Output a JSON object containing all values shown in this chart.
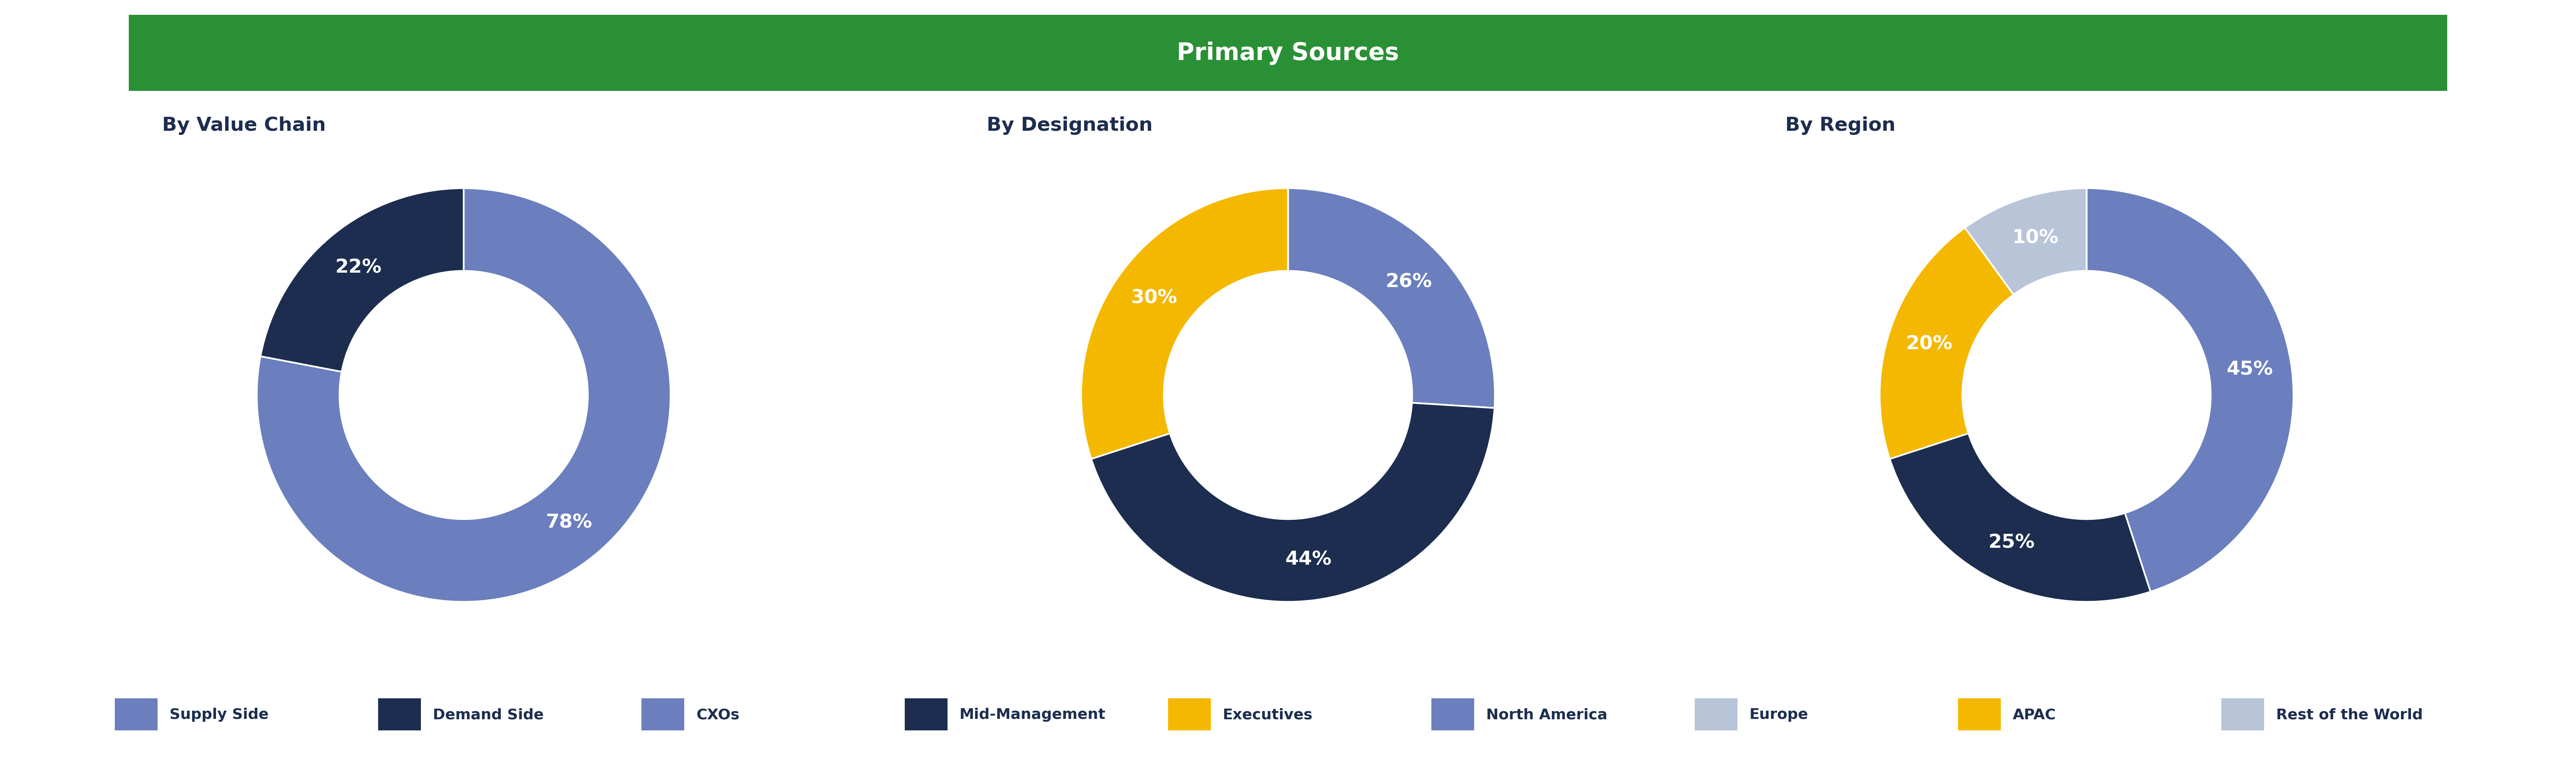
{
  "title": "Primary Sources",
  "title_bg_color": "#2a9035",
  "title_text_color": "#ffffff",
  "background_color": "#ffffff",
  "subtitle_color": "#1c2d4f",
  "chart_bg_color": "#ffffff",
  "chart1_title": "By Value Chain",
  "chart1_values": [
    78,
    22
  ],
  "chart1_labels": [
    "78%",
    "22%"
  ],
  "chart1_colors": [
    "#6b7fbe",
    "#1c2d4f"
  ],
  "chart2_title": "By Designation",
  "chart2_values": [
    26,
    44,
    30
  ],
  "chart2_labels": [
    "26%",
    "44%",
    "30%"
  ],
  "chart2_colors": [
    "#6b7fbe",
    "#1c2d4f",
    "#f5b800"
  ],
  "chart3_title": "By Region",
  "chart3_values": [
    45,
    25,
    20,
    10
  ],
  "chart3_labels": [
    "45%",
    "25%",
    "20%",
    "10%"
  ],
  "chart3_colors": [
    "#6b7fbe",
    "#1c2d4f",
    "#f5b800",
    "#b8c4d8"
  ],
  "legend_items": [
    {
      "label": "Supply Side",
      "color": "#6b7fbe"
    },
    {
      "label": "Demand Side",
      "color": "#1c2d4f"
    },
    {
      "label": "CXOs",
      "color": "#6b7fbe"
    },
    {
      "label": "Mid-Management",
      "color": "#1c2d4f"
    },
    {
      "label": "Executives",
      "color": "#f5b800"
    },
    {
      "label": "North America",
      "color": "#6b7fbe"
    },
    {
      "label": "Europe",
      "color": "#b8c4d8"
    },
    {
      "label": "APAC",
      "color": "#f5b800"
    },
    {
      "label": "Rest of the World",
      "color": "#b8c4d8"
    }
  ],
  "donut_width": 0.4,
  "label_fontsize": 34,
  "title_fontsize": 42,
  "subtitle_fontsize": 34,
  "legend_fontsize": 26
}
